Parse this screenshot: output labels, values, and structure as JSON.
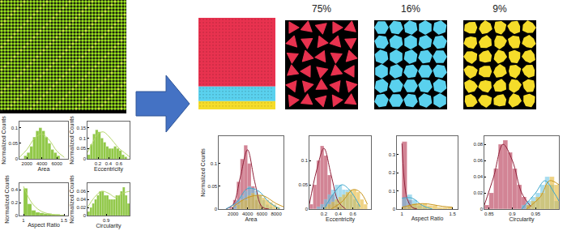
{
  "chart_data": [
    {
      "type": "histogram",
      "x_label": "Area",
      "y_label": "Normalized Counts",
      "bins": [
        1600,
        2000,
        2400,
        2800,
        3200,
        3600,
        4000,
        4400,
        4800,
        5200,
        5600,
        6000,
        6400
      ],
      "xlim": [
        1000,
        7500
      ],
      "xticks": [
        2000,
        4000,
        6000
      ],
      "ylim": [
        0,
        0.12
      ],
      "yticks": [
        0,
        0.05,
        0.1
      ],
      "grid": false,
      "series": [
        {
          "type": "bar",
          "color": "#8cc63f",
          "values": [
            0.01,
            0.02,
            0.04,
            0.07,
            0.09,
            0.1,
            0.09,
            0.07,
            0.05,
            0.03,
            0.02,
            0.01
          ]
        },
        {
          "type": "line",
          "color": "#b5d66b",
          "x": [
            1000,
            2000,
            3000,
            4000,
            5000,
            6000,
            7000
          ],
          "values": [
            0.005,
            0.03,
            0.065,
            0.08,
            0.06,
            0.025,
            0.005
          ]
        }
      ]
    },
    {
      "type": "histogram",
      "x_label": "Eccentricity",
      "y_label": "Normalized Counts",
      "bins": [
        0,
        0.05,
        0.1,
        0.15,
        0.2,
        0.25,
        0.3,
        0.35,
        0.4,
        0.45,
        0.5,
        0.55,
        0.6,
        0.65,
        0.7,
        0.75
      ],
      "xlim": [
        0,
        0.8
      ],
      "xticks": [
        0.2,
        0.4,
        0.6
      ],
      "ylim": [
        0,
        0.18
      ],
      "yticks": [
        0,
        0.05,
        0.1,
        0.15
      ],
      "grid": false,
      "series": [
        {
          "type": "bar",
          "color": "#8cc63f",
          "values": [
            0.02,
            0.07,
            0.12,
            0.14,
            0.13,
            0.1,
            0.08,
            0.06,
            0.05,
            0.05,
            0.06,
            0.05,
            0.04,
            0.02,
            0.01
          ]
        },
        {
          "type": "line",
          "color": "#b5d66b",
          "x": [
            0,
            0.1,
            0.2,
            0.3,
            0.4,
            0.5,
            0.6,
            0.7,
            0.8
          ],
          "values": [
            0.03,
            0.08,
            0.12,
            0.13,
            0.11,
            0.08,
            0.05,
            0.03,
            0.01
          ]
        }
      ]
    },
    {
      "type": "histogram",
      "x_label": "Aspect Ratio",
      "y_label": "Normalized Counts",
      "bins": [
        1,
        1.05,
        1.1,
        1.15,
        1.2,
        1.25,
        1.3,
        1.35,
        1.4,
        1.45,
        1.5
      ],
      "xlim": [
        0.95,
        1.55
      ],
      "xticks": [
        1,
        1.5
      ],
      "ylim": [
        0,
        0.5
      ],
      "yticks": [
        0,
        0.2,
        0.4
      ],
      "grid": false,
      "series": [
        {
          "type": "bar",
          "color": "#8cc63f",
          "values": [
            0.42,
            0.18,
            0.08,
            0.05,
            0.04,
            0.03,
            0.03,
            0.02,
            0.02,
            0.01
          ]
        },
        {
          "type": "line",
          "color": "#b5d66b",
          "x": [
            1,
            1.1,
            1.2,
            1.3,
            1.4,
            1.5
          ],
          "values": [
            0.45,
            0.2,
            0.08,
            0.03,
            0.01,
            0.005
          ]
        }
      ]
    },
    {
      "type": "histogram",
      "x_label": "Circularity",
      "y_label": "Normalized Counts",
      "bins": [
        0.82,
        0.83,
        0.84,
        0.85,
        0.86,
        0.87,
        0.88,
        0.89,
        0.9,
        0.91,
        0.92,
        0.93,
        0.94,
        0.95,
        0.96,
        0.97,
        0.98,
        0.99,
        1
      ],
      "xlim": [
        0.82,
        1
      ],
      "xticks": [
        0.9
      ],
      "ylim": [
        0,
        0.08
      ],
      "yticks": [
        0,
        0.02,
        0.04,
        0.06
      ],
      "grid": false,
      "series": [
        {
          "type": "bar",
          "color": "#8cc63f",
          "values": [
            0.01,
            0.02,
            0.03,
            0.04,
            0.05,
            0.06,
            0.06,
            0.05,
            0.05,
            0.04,
            0.04,
            0.04,
            0.05,
            0.05,
            0.06,
            0.07,
            0.05,
            0.03
          ]
        },
        {
          "type": "line",
          "color": "#b5d66b",
          "x": [
            0.82,
            0.85,
            0.88,
            0.91,
            0.94,
            0.97,
            1
          ],
          "values": [
            0.02,
            0.045,
            0.06,
            0.055,
            0.045,
            0.055,
            0.06
          ]
        }
      ]
    },
    {
      "type": "histogram",
      "x_label": "Area",
      "y_label": "Normalized Counts",
      "bins": [
        1000,
        1500,
        2000,
        2500,
        3000,
        3500,
        4000,
        4500,
        5000,
        5500,
        6000,
        6500,
        7000,
        7500,
        8000,
        8500
      ],
      "xlim": [
        0,
        9000
      ],
      "xticks": [
        2000,
        4000,
        6000,
        8000
      ],
      "ylim": [
        0,
        0.16
      ],
      "yticks": [
        0,
        0.05,
        0.1
      ],
      "grid": false,
      "series": [
        {
          "type": "bar",
          "color": "#b5334f",
          "values": [
            0,
            0.005,
            0.02,
            0.06,
            0.11,
            0.14,
            0.1,
            0.05,
            0.02,
            0.01,
            0,
            0,
            0,
            0,
            0
          ]
        },
        {
          "type": "bar",
          "color": "#6ec6e6",
          "values": [
            0,
            0,
            0.01,
            0.02,
            0.03,
            0.04,
            0.05,
            0.045,
            0.04,
            0.03,
            0.02,
            0.01,
            0.005,
            0,
            0
          ]
        },
        {
          "type": "bar",
          "color": "#e6b735",
          "values": [
            0,
            0,
            0,
            0.01,
            0.02,
            0.02,
            0.03,
            0.035,
            0.03,
            0.03,
            0.025,
            0.02,
            0.015,
            0.01,
            0.005
          ]
        },
        {
          "type": "line",
          "color": "#8e1f38",
          "x": [
            1000,
            2000,
            3000,
            4000,
            5000,
            6000,
            7000
          ],
          "values": [
            0,
            0.01,
            0.07,
            0.13,
            0.06,
            0.005,
            0
          ]
        },
        {
          "type": "line",
          "color": "#3aa6cc",
          "x": [
            1000,
            2500,
            4000,
            5500,
            7000,
            8500
          ],
          "values": [
            0,
            0.015,
            0.045,
            0.04,
            0.015,
            0
          ]
        },
        {
          "type": "line",
          "color": "#c9951a",
          "x": [
            2000,
            4000,
            6000,
            8000,
            9000
          ],
          "values": [
            0.005,
            0.025,
            0.03,
            0.012,
            0.005
          ]
        }
      ]
    },
    {
      "type": "histogram",
      "x_label": "Eccentricity",
      "bins": [
        0,
        0.05,
        0.1,
        0.15,
        0.2,
        0.25,
        0.3,
        0.35,
        0.4,
        0.45,
        0.5,
        0.55,
        0.6,
        0.65,
        0.7,
        0.75,
        0.8
      ],
      "xlim": [
        0,
        0.85
      ],
      "xticks": [
        0.2,
        0.4,
        0.6
      ],
      "ylim": [
        0,
        0.15
      ],
      "yticks": [
        0,
        0.05,
        0.1
      ],
      "grid": false,
      "series": [
        {
          "type": "bar",
          "color": "#b5334f",
          "values": [
            0.01,
            0.05,
            0.1,
            0.13,
            0.11,
            0.07,
            0.03,
            0.01,
            0.005,
            0,
            0,
            0,
            0,
            0,
            0,
            0
          ]
        },
        {
          "type": "bar",
          "color": "#6ec6e6",
          "values": [
            0,
            0,
            0.005,
            0.01,
            0.02,
            0.03,
            0.04,
            0.05,
            0.05,
            0.04,
            0.04,
            0.03,
            0.02,
            0.01,
            0,
            0
          ]
        },
        {
          "type": "bar",
          "color": "#e6b735",
          "values": [
            0,
            0,
            0,
            0,
            0.005,
            0.01,
            0.015,
            0.02,
            0.025,
            0.03,
            0.035,
            0.04,
            0.04,
            0.035,
            0.02,
            0.01
          ]
        },
        {
          "type": "line",
          "color": "#8e1f38",
          "x": [
            0,
            0.1,
            0.2,
            0.3,
            0.4,
            0.5
          ],
          "values": [
            0.01,
            0.08,
            0.125,
            0.07,
            0.015,
            0
          ]
        },
        {
          "type": "line",
          "color": "#3aa6cc",
          "x": [
            0.2,
            0.35,
            0.45,
            0.55,
            0.7
          ],
          "values": [
            0,
            0.035,
            0.05,
            0.04,
            0.005
          ]
        },
        {
          "type": "line",
          "color": "#c9951a",
          "x": [
            0.3,
            0.45,
            0.6,
            0.7,
            0.8
          ],
          "values": [
            0,
            0.015,
            0.04,
            0.035,
            0.01
          ]
        }
      ]
    },
    {
      "type": "histogram",
      "x_label": "Aspect Ratio",
      "bins": [
        1,
        1.05,
        1.1,
        1.15,
        1.2,
        1.25,
        1.3,
        1.35,
        1.4,
        1.45,
        1.5
      ],
      "xlim": [
        0.95,
        1.55
      ],
      "xticks": [
        1,
        1.5
      ],
      "ylim": [
        0,
        0.4
      ],
      "yticks": [
        0,
        0.1,
        0.2,
        0.3
      ],
      "grid": false,
      "series": [
        {
          "type": "bar",
          "color": "#b5334f",
          "values": [
            0.37,
            0.05,
            0.01,
            0,
            0,
            0,
            0,
            0,
            0,
            0
          ]
        },
        {
          "type": "bar",
          "color": "#6ec6e6",
          "values": [
            0.06,
            0.08,
            0.05,
            0.02,
            0.01,
            0,
            0,
            0,
            0,
            0
          ]
        },
        {
          "type": "bar",
          "color": "#e6b735",
          "values": [
            0.01,
            0.02,
            0.03,
            0.03,
            0.03,
            0.02,
            0.02,
            0.01,
            0.01,
            0.01
          ]
        },
        {
          "type": "line",
          "color": "#8e1f38",
          "x": [
            1,
            1.05,
            1.1,
            1.15
          ],
          "values": [
            0.36,
            0.06,
            0.01,
            0
          ]
        },
        {
          "type": "line",
          "color": "#3aa6cc",
          "x": [
            1,
            1.1,
            1.2,
            1.3
          ],
          "values": [
            0.06,
            0.06,
            0.02,
            0
          ]
        },
        {
          "type": "line",
          "color": "#c9951a",
          "x": [
            1,
            1.2,
            1.4,
            1.5
          ],
          "values": [
            0.01,
            0.03,
            0.015,
            0.01
          ]
        }
      ]
    },
    {
      "type": "histogram",
      "x_label": "Circularity",
      "bins": [
        0.84,
        0.85,
        0.86,
        0.87,
        0.88,
        0.89,
        0.9,
        0.91,
        0.92,
        0.93,
        0.94,
        0.95,
        0.96,
        0.97,
        0.98,
        0.99,
        1
      ],
      "xlim": [
        0.84,
        1
      ],
      "xticks": [
        0.85,
        0.9,
        0.95
      ],
      "ylim": [
        0,
        0.09
      ],
      "yticks": [
        0,
        0.02,
        0.04,
        0.06,
        0.08
      ],
      "grid": false,
      "series": [
        {
          "type": "bar",
          "color": "#b5334f",
          "values": [
            0.005,
            0.02,
            0.05,
            0.08,
            0.085,
            0.07,
            0.05,
            0.03,
            0.015,
            0.005,
            0,
            0,
            0,
            0,
            0,
            0
          ]
        },
        {
          "type": "bar",
          "color": "#6ec6e6",
          "values": [
            0,
            0,
            0,
            0,
            0,
            0,
            0,
            0,
            0.005,
            0.01,
            0.015,
            0.02,
            0.03,
            0.04,
            0.03,
            0.01
          ]
        },
        {
          "type": "bar",
          "color": "#e6b735",
          "values": [
            0,
            0,
            0,
            0,
            0,
            0,
            0,
            0,
            0,
            0.005,
            0.01,
            0.015,
            0.02,
            0.03,
            0.04,
            0.03
          ]
        },
        {
          "type": "line",
          "color": "#8e1f38",
          "x": [
            0.84,
            0.86,
            0.88,
            0.9,
            0.92,
            0.94
          ],
          "values": [
            0.005,
            0.04,
            0.08,
            0.06,
            0.02,
            0.003
          ]
        },
        {
          "type": "line",
          "color": "#3aa6cc",
          "x": [
            0.92,
            0.95,
            0.97,
            0.99,
            1
          ],
          "values": [
            0,
            0.02,
            0.035,
            0.02,
            0.01
          ]
        },
        {
          "type": "line",
          "color": "#c9951a",
          "x": [
            0.93,
            0.96,
            0.98,
            1
          ],
          "values": [
            0,
            0.015,
            0.035,
            0.03
          ]
        }
      ]
    }
  ],
  "clusters": [
    {
      "value": 75,
      "label": "75%",
      "color": "#e8324f"
    },
    {
      "value": 16,
      "label": "16%",
      "color": "#5ad1ee"
    },
    {
      "value": 9,
      "label": "9%",
      "color": "#f5dc2a"
    }
  ]
}
